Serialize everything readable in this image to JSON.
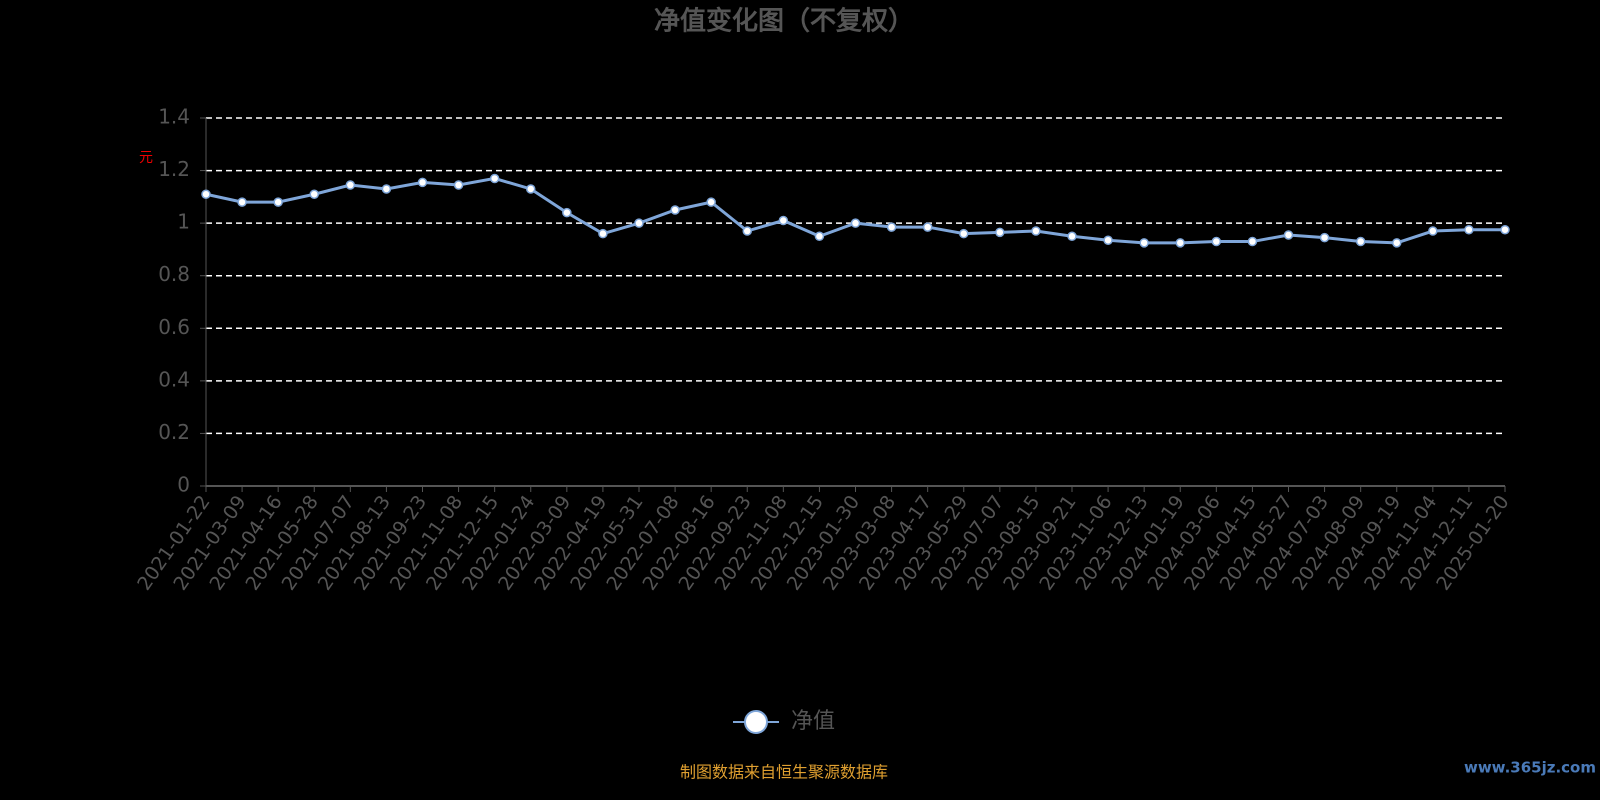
{
  "chart_data": {
    "type": "line",
    "title": "净值变化图（不复权）",
    "y_label": "元",
    "categories": [
      "2021-01-22",
      "2021-03-09",
      "2021-04-16",
      "2021-05-28",
      "2021-07-07",
      "2021-08-13",
      "2021-09-23",
      "2021-11-08",
      "2021-12-15",
      "2022-01-24",
      "2022-03-09",
      "2022-04-19",
      "2022-05-31",
      "2022-07-08",
      "2022-08-16",
      "2022-09-23",
      "2022-11-08",
      "2022-12-15",
      "2023-01-30",
      "2023-03-08",
      "2023-04-17",
      "2023-05-29",
      "2023-07-07",
      "2023-08-15",
      "2023-09-21",
      "2023-11-06",
      "2023-12-13",
      "2024-01-19",
      "2024-03-06",
      "2024-04-15",
      "2024-05-27",
      "2024-07-03",
      "2024-08-09",
      "2024-09-19",
      "2024-11-04",
      "2024-12-11",
      "2025-01-20"
    ],
    "series": [
      {
        "name": "净值",
        "color": "#7fa6d9",
        "values": [
          1.11,
          1.08,
          1.08,
          1.11,
          1.145,
          1.13,
          1.155,
          1.145,
          1.17,
          1.13,
          1.04,
          0.96,
          1.0,
          1.05,
          1.08,
          0.97,
          1.01,
          0.95,
          1.0,
          0.985,
          0.985,
          0.96,
          0.965,
          0.97,
          0.95,
          0.935,
          0.925,
          0.925,
          0.93,
          0.93,
          0.955,
          0.945,
          0.93,
          0.925,
          0.97,
          0.975,
          0.975
        ]
      }
    ],
    "ylim": [
      0,
      1.4
    ],
    "yticks": [
      0,
      0.2,
      0.4,
      0.6,
      0.8,
      1,
      1.2,
      1.4
    ],
    "grid": true,
    "source": "制图数据来自恒生聚源数据库",
    "watermark": "www.365jz.com"
  }
}
